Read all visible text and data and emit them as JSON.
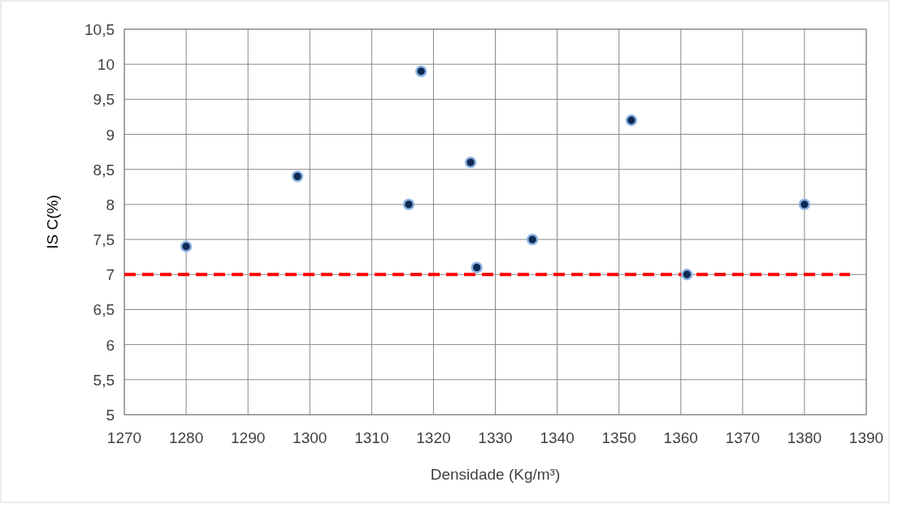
{
  "chart_data": {
    "type": "scatter",
    "xlabel": "Densidade (Kg/m³)",
    "ylabel": "IS C(%)",
    "xlim": [
      1270,
      1390
    ],
    "xticks": [
      1270,
      1280,
      1290,
      1300,
      1310,
      1320,
      1330,
      1340,
      1350,
      1360,
      1370,
      1380,
      1390
    ],
    "ylim": [
      5,
      10.5
    ],
    "yticks": [
      5,
      {
        "value": 5.5,
        "label": "5,5"
      },
      6,
      {
        "value": 6.5,
        "label": "6,5"
      },
      7,
      {
        "value": 7.5,
        "label": "7,5"
      },
      8,
      {
        "value": 8.5,
        "label": "8,5"
      },
      9,
      {
        "value": 9.5,
        "label": "9,5"
      },
      10,
      {
        "value": 10.5,
        "label": "10,5"
      }
    ],
    "grid": true,
    "marker": "circle",
    "series": [
      {
        "color": "#0f2a55",
        "x": [
          1280,
          1298,
          1316,
          1318,
          1326,
          1327,
          1336,
          1352,
          1361,
          1380
        ],
        "values": [
          7.4,
          8.4,
          8.0,
          9.9,
          8.6,
          7.1,
          7.5,
          9.2,
          7.0,
          8.0
        ]
      }
    ],
    "ref_lines": [
      {
        "axis": "y",
        "value": 7,
        "color": "#ff0000",
        "line_style": "dashed"
      }
    ]
  }
}
